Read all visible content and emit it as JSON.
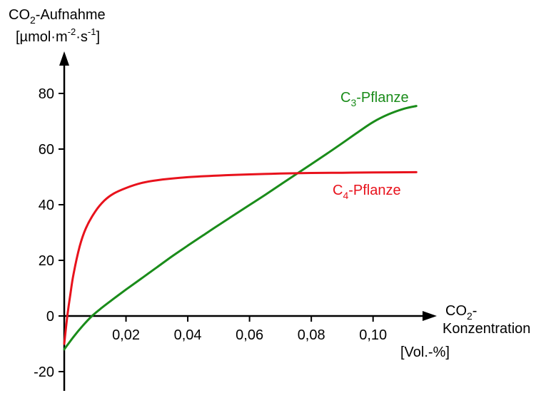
{
  "chart_data": {
    "type": "line",
    "y_axis": {
      "title_line1_pre": "CO",
      "title_line1_sub": "2",
      "title_line1_post": "-Aufnahme",
      "title_line2_a": "[µmol·m",
      "title_line2_sup1": "-2",
      "title_line2_b": "·s",
      "title_line2_sup2": "-1",
      "title_line2_c": "]",
      "range": [
        -20,
        80
      ],
      "ticks": [
        -20,
        0,
        20,
        40,
        60,
        80
      ],
      "tick_labels": [
        "-20",
        "0",
        "20",
        "40",
        "60",
        "80"
      ]
    },
    "x_axis": {
      "title_line1_pre": "CO",
      "title_line1_sub": "2",
      "title_line1_post": "-",
      "title_line2": "Konzentration",
      "unit": "[Vol.-%]",
      "range": [
        0,
        0.12
      ],
      "ticks": [
        0.02,
        0.04,
        0.06,
        0.08,
        0.1
      ],
      "tick_labels": [
        "0,02",
        "0,04",
        "0,06",
        "0,08",
        "0,10"
      ]
    },
    "series": [
      {
        "name_pre": "C",
        "name_sub": "3",
        "name_post": "-Pflanze",
        "color": "#1a8c1a",
        "x": [
          0,
          0.003,
          0.006,
          0.009,
          0.012,
          0.016,
          0.02,
          0.025,
          0.03,
          0.035,
          0.04,
          0.045,
          0.05,
          0.055,
          0.06,
          0.065,
          0.07,
          0.075,
          0.08,
          0.085,
          0.09,
          0.095,
          0.1,
          0.105,
          0.11,
          0.114
        ],
        "y": [
          -12,
          -7.5,
          -3.5,
          0,
          2.8,
          6.2,
          9.5,
          13.5,
          17.5,
          21.5,
          25.3,
          29,
          32.7,
          36.3,
          39.9,
          43.5,
          47.2,
          50.9,
          54.6,
          58.3,
          62.1,
          66,
          69.7,
          72.5,
          74.5,
          75.5
        ]
      },
      {
        "name_pre": "C",
        "name_sub": "4",
        "name_post": "-Pflanze",
        "color": "#e8121c",
        "x": [
          0,
          0.001,
          0.002,
          0.003,
          0.005,
          0.007,
          0.01,
          0.013,
          0.016,
          0.02,
          0.025,
          0.03,
          0.04,
          0.05,
          0.06,
          0.07,
          0.08,
          0.09,
          0.1,
          0.114
        ],
        "y": [
          -10,
          0,
          8,
          15,
          25,
          31.5,
          37.5,
          41.5,
          44,
          46,
          47.8,
          48.8,
          49.9,
          50.5,
          50.9,
          51.2,
          51.4,
          51.5,
          51.6,
          51.7
        ]
      }
    ],
    "grid": false,
    "legend": "inline"
  }
}
